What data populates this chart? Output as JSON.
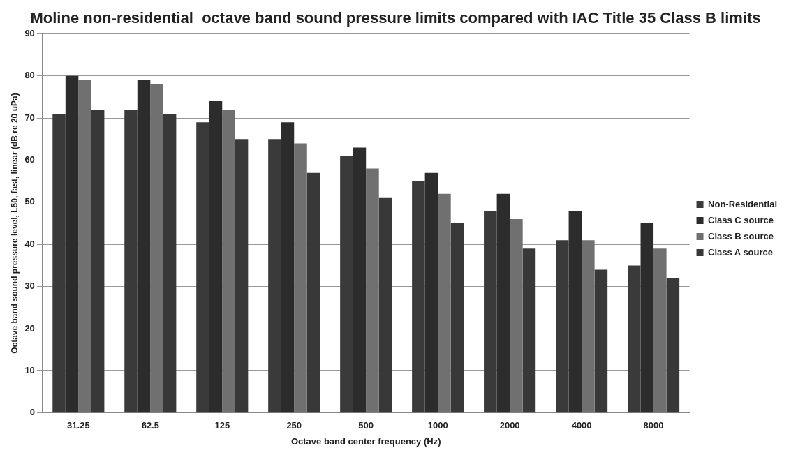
{
  "chart_data": {
    "type": "bar",
    "title": "Moline non-residential  octave band sound pressure limits compared with IAC Title 35 Class B limits",
    "xlabel": "Octave band center frequency (Hz)",
    "ylabel": "Octave band sound pressure level, L50, fast, linear (dB re 20 uPa)",
    "categories": [
      "31.25",
      "62.5",
      "125",
      "250",
      "500",
      "1000",
      "2000",
      "4000",
      "8000"
    ],
    "series": [
      {
        "name": "Non-Residential",
        "color": "#3a3a3a",
        "values": [
          71,
          72,
          69,
          65,
          61,
          55,
          48,
          41,
          35
        ]
      },
      {
        "name": "Class C source",
        "color": "#2c2c2c",
        "values": [
          80,
          79,
          74,
          69,
          63,
          57,
          52,
          48,
          45
        ]
      },
      {
        "name": "Class B source",
        "color": "#707070",
        "values": [
          79,
          78,
          72,
          64,
          58,
          52,
          46,
          41,
          39
        ]
      },
      {
        "name": "Class A source",
        "color": "#383838",
        "values": [
          72,
          71,
          65,
          57,
          51,
          45,
          39,
          34,
          32
        ]
      }
    ],
    "ylim": [
      0,
      90
    ],
    "yticks": [
      0,
      10,
      20,
      30,
      40,
      50,
      60,
      70,
      80,
      90
    ],
    "grid": "y",
    "legend": "right"
  }
}
